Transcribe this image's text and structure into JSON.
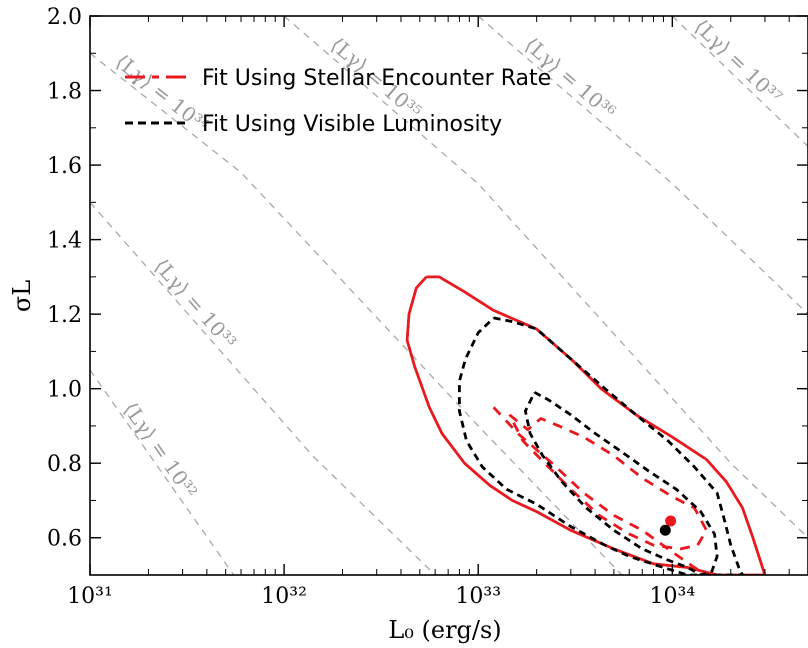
{
  "chart_data": {
    "type": "line",
    "xlabel": "L₀ (erg/s)",
    "ylabel": "σL",
    "x_scale": "log",
    "xlim": [
      1e+31,
      5e+34
    ],
    "ylim": [
      0.5,
      2.0
    ],
    "grid": false,
    "legend_position": "top-left",
    "x_ticks": [
      {
        "value": 1e+31,
        "label": "10³¹"
      },
      {
        "value": 1e+32,
        "label": "10³²"
      },
      {
        "value": 1e+33,
        "label": "10³³"
      },
      {
        "value": 1e+34,
        "label": "10³⁴"
      }
    ],
    "y_ticks": [
      {
        "value": 0.6,
        "label": "0.6"
      },
      {
        "value": 0.8,
        "label": "0.8"
      },
      {
        "value": 1.0,
        "label": "1.0"
      },
      {
        "value": 1.2,
        "label": "1.2"
      },
      {
        "value": 1.4,
        "label": "1.4"
      },
      {
        "value": 1.6,
        "label": "1.6"
      },
      {
        "value": 1.8,
        "label": "1.8"
      },
      {
        "value": 2.0,
        "label": "2.0"
      }
    ],
    "iso_luminosity_lines": [
      {
        "label": "⟨Lγ⟩ = 10³²",
        "points": [
          [
            1e+31,
            1.05
          ],
          [
            5.5e+31,
            0.5
          ]
        ]
      },
      {
        "label": "⟨Lγ⟩ = 10³³",
        "points": [
          [
            1e+31,
            1.5
          ],
          [
            1.4e+32,
            0.82
          ],
          [
            6e+32,
            0.5
          ]
        ]
      },
      {
        "label": "⟨Lγ⟩ = 10³⁴",
        "points": [
          [
            1e+31,
            1.9
          ],
          [
            6e+31,
            1.58
          ],
          [
            1e+33,
            0.9
          ],
          [
            5.5e+33,
            0.5
          ]
        ]
      },
      {
        "label": "⟨Lγ⟩ = 10³⁵",
        "points": [
          [
            1e+32,
            2.0
          ],
          [
            1e+33,
            1.55
          ],
          [
            2e+34,
            0.8
          ],
          [
            5e+34,
            0.6
          ]
        ]
      },
      {
        "label": "⟨Lγ⟩ = 10³⁶",
        "points": [
          [
            1e+33,
            2.0
          ],
          [
            1e+34,
            1.55
          ],
          [
            5e+34,
            1.2
          ]
        ]
      },
      {
        "label": "⟨Lγ⟩ = 10³⁷",
        "points": [
          [
            1e+34,
            2.0
          ],
          [
            5e+34,
            1.65
          ]
        ]
      }
    ],
    "series": [
      {
        "name": "Fit Using Stellar Encounter Rate",
        "color": "#e8191f",
        "best_fit": [
          9.8e+33,
          0.645
        ],
        "contours": [
          {
            "style": "solid",
            "points": [
              [
                5.4e+32,
                1.3
              ],
              [
                6.3e+32,
                1.3
              ],
              [
                8.5e+32,
                1.26
              ],
              [
                1.2e+33,
                1.21
              ],
              [
                2e+33,
                1.16
              ],
              [
                3e+33,
                1.08
              ],
              [
                4.3e+33,
                1.0
              ],
              [
                6.5e+33,
                0.93
              ],
              [
                1e+34,
                0.87
              ],
              [
                1.5e+34,
                0.81
              ],
              [
                1.9e+34,
                0.75
              ],
              [
                2.3e+34,
                0.68
              ],
              [
                2.6e+34,
                0.6
              ],
              [
                3e+34,
                0.5
              ],
              [
                2.3e+34,
                0.5
              ],
              [
                1.7e+34,
                0.5
              ],
              [
                1.2e+34,
                0.52
              ],
              [
                8e+33,
                0.53
              ],
              [
                5e+33,
                0.57
              ],
              [
                3e+33,
                0.62
              ],
              [
                2e+33,
                0.67
              ],
              [
                1.5e+33,
                0.7
              ],
              [
                1.15e+33,
                0.74
              ],
              [
                8.5e+32,
                0.8
              ],
              [
                6.5e+32,
                0.88
              ],
              [
                5.6e+32,
                0.95
              ],
              [
                4.7e+32,
                1.06
              ],
              [
                4.3e+32,
                1.13
              ],
              [
                4.4e+32,
                1.2
              ],
              [
                4.8e+32,
                1.27
              ],
              [
                5.4e+32,
                1.3
              ]
            ]
          },
          {
            "style": "dashed",
            "points": [
              [
                1.2e+33,
                0.95
              ],
              [
                1.6e+33,
                0.88
              ],
              [
                2.4e+33,
                0.8
              ],
              [
                3.5e+33,
                0.72
              ],
              [
                5e+33,
                0.66
              ],
              [
                7e+33,
                0.62
              ],
              [
                9.5e+33,
                0.57
              ],
              [
                1.3e+34,
                0.52
              ],
              [
                1.5e+34,
                0.5
              ]
            ]
          },
          {
            "style": "dashed",
            "points": [
              [
                1.45e+33,
                0.93
              ],
              [
                1.8e+33,
                0.89
              ],
              [
                2.1e+33,
                0.92
              ],
              [
                2.6e+33,
                0.9
              ],
              [
                3.5e+33,
                0.87
              ],
              [
                5e+33,
                0.82
              ],
              [
                7e+33,
                0.76
              ],
              [
                1e+34,
                0.71
              ],
              [
                1.3e+34,
                0.68
              ],
              [
                1.5e+34,
                0.62
              ],
              [
                1.35e+34,
                0.58
              ],
              [
                1.1e+34,
                0.57
              ],
              [
                8e+33,
                0.58
              ],
              [
                6e+33,
                0.61
              ],
              [
                4.2e+33,
                0.66
              ],
              [
                3e+33,
                0.73
              ],
              [
                2.2e+33,
                0.8
              ],
              [
                1.7e+33,
                0.86
              ],
              [
                1.45e+33,
                0.93
              ]
            ]
          }
        ]
      },
      {
        "name": "Fit Using Visible Luminosity",
        "color": "#000000",
        "best_fit": [
          9.2e+33,
          0.62
        ],
        "contours": [
          {
            "style": "dashed",
            "points": [
              [
                1.2e+33,
                1.19
              ],
              [
                1.5e+33,
                1.18
              ],
              [
                2e+33,
                1.16
              ],
              [
                3e+33,
                1.08
              ],
              [
                4.5e+33,
                1.0
              ],
              [
                6.5e+33,
                0.93
              ],
              [
                9.5e+33,
                0.86
              ],
              [
                1.3e+34,
                0.79
              ],
              [
                1.7e+34,
                0.72
              ],
              [
                1.85e+34,
                0.65
              ],
              [
                2e+34,
                0.58
              ],
              [
                2.2e+34,
                0.52
              ],
              [
                2.3e+34,
                0.5
              ],
              [
                1.5e+34,
                0.5
              ],
              [
                1.2e+34,
                0.5
              ],
              [
                9e+33,
                0.52
              ],
              [
                6e+33,
                0.55
              ],
              [
                4.5e+33,
                0.58
              ],
              [
                3e+33,
                0.63
              ],
              [
                2e+33,
                0.69
              ],
              [
                1.4e+33,
                0.73
              ],
              [
                1.05e+33,
                0.79
              ],
              [
                8.7e+32,
                0.86
              ],
              [
                8e+32,
                0.94
              ],
              [
                8e+32,
                1.02
              ],
              [
                8.6e+32,
                1.08
              ],
              [
                1e+33,
                1.15
              ],
              [
                1.2e+33,
                1.19
              ]
            ]
          },
          {
            "style": "dashed",
            "points": [
              [
                1.95e+33,
                0.99
              ],
              [
                2.3e+33,
                0.97
              ],
              [
                3e+33,
                0.93
              ],
              [
                4e+33,
                0.88
              ],
              [
                5.5e+33,
                0.83
              ],
              [
                7.5e+33,
                0.78
              ],
              [
                1.05e+34,
                0.73
              ],
              [
                1.4e+34,
                0.67
              ],
              [
                1.65e+34,
                0.61
              ],
              [
                1.7e+34,
                0.55
              ],
              [
                1.6e+34,
                0.51
              ],
              [
                1.4e+34,
                0.5
              ],
              [
                1.2e+34,
                0.52
              ],
              [
                9.5e+33,
                0.54
              ],
              [
                7e+33,
                0.57
              ],
              [
                5e+33,
                0.62
              ],
              [
                3.6e+33,
                0.68
              ],
              [
                2.7e+33,
                0.75
              ],
              [
                2.15e+33,
                0.82
              ],
              [
                1.85e+33,
                0.88
              ],
              [
                1.75e+33,
                0.94
              ],
              [
                1.95e+33,
                0.99
              ]
            ]
          }
        ]
      }
    ]
  }
}
